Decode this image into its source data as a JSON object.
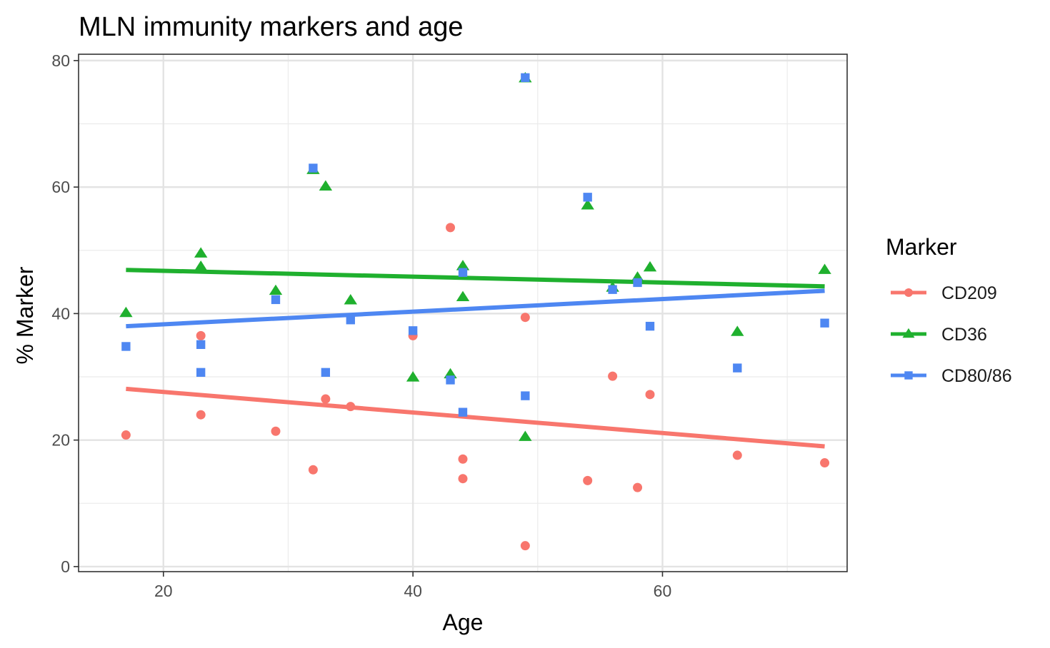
{
  "chart_data": {
    "type": "scatter",
    "title": "MLN immunity markers and age",
    "xlabel": "Age",
    "ylabel": "% Marker",
    "xlim": [
      13.2,
      74.8
    ],
    "ylim": [
      -0.8,
      81.0
    ],
    "x_ticks": [
      20,
      40,
      60
    ],
    "y_ticks": [
      0,
      20,
      40,
      60,
      80
    ],
    "grid": true,
    "legend": {
      "title": "Marker",
      "position": "right"
    },
    "series": [
      {
        "name": "CD209",
        "color": "#F8766D",
        "marker": "circle",
        "points": [
          [
            17,
            20.8
          ],
          [
            23,
            36.5
          ],
          [
            23,
            24.0
          ],
          [
            29,
            21.4
          ],
          [
            32,
            15.3
          ],
          [
            33,
            26.5
          ],
          [
            35,
            25.3
          ],
          [
            40,
            36.5
          ],
          [
            43,
            53.6
          ],
          [
            44,
            17.0
          ],
          [
            44,
            13.9
          ],
          [
            49,
            39.4
          ],
          [
            49,
            3.3
          ],
          [
            54,
            13.6
          ],
          [
            56,
            30.1
          ],
          [
            58,
            12.5
          ],
          [
            59,
            27.2
          ],
          [
            66,
            17.6
          ],
          [
            73,
            16.4
          ]
        ],
        "trend": {
          "x": [
            17,
            73
          ],
          "y": [
            28.1,
            19.0
          ]
        }
      },
      {
        "name": "CD36",
        "color": "#1FB02E",
        "marker": "triangle",
        "points": [
          [
            17,
            40.1
          ],
          [
            23,
            49.5
          ],
          [
            23,
            47.4
          ],
          [
            29,
            43.6
          ],
          [
            32,
            62.7
          ],
          [
            33,
            60.1
          ],
          [
            35,
            42.1
          ],
          [
            40,
            29.9
          ],
          [
            43,
            30.4
          ],
          [
            44,
            47.5
          ],
          [
            44,
            42.6
          ],
          [
            49,
            77.2
          ],
          [
            49,
            20.5
          ],
          [
            54,
            57.1
          ],
          [
            56,
            44.1
          ],
          [
            58,
            45.7
          ],
          [
            59,
            47.3
          ],
          [
            66,
            37.1
          ],
          [
            73,
            46.9
          ]
        ],
        "trend": {
          "x": [
            17,
            73
          ],
          "y": [
            46.9,
            44.3
          ]
        }
      },
      {
        "name": "CD80/86",
        "color": "#4E87F2",
        "marker": "square",
        "points": [
          [
            17,
            34.8
          ],
          [
            23,
            35.1
          ],
          [
            23,
            30.7
          ],
          [
            29,
            42.2
          ],
          [
            32,
            63.0
          ],
          [
            33,
            30.7
          ],
          [
            35,
            39.0
          ],
          [
            40,
            37.3
          ],
          [
            43,
            29.5
          ],
          [
            44,
            46.5
          ],
          [
            44,
            24.4
          ],
          [
            49,
            77.3
          ],
          [
            49,
            27.0
          ],
          [
            54,
            58.4
          ],
          [
            56,
            43.8
          ],
          [
            58,
            44.9
          ],
          [
            59,
            38.0
          ],
          [
            66,
            31.4
          ],
          [
            73,
            38.5
          ]
        ],
        "trend": {
          "x": [
            17,
            73
          ],
          "y": [
            38.0,
            43.6
          ]
        }
      }
    ]
  }
}
